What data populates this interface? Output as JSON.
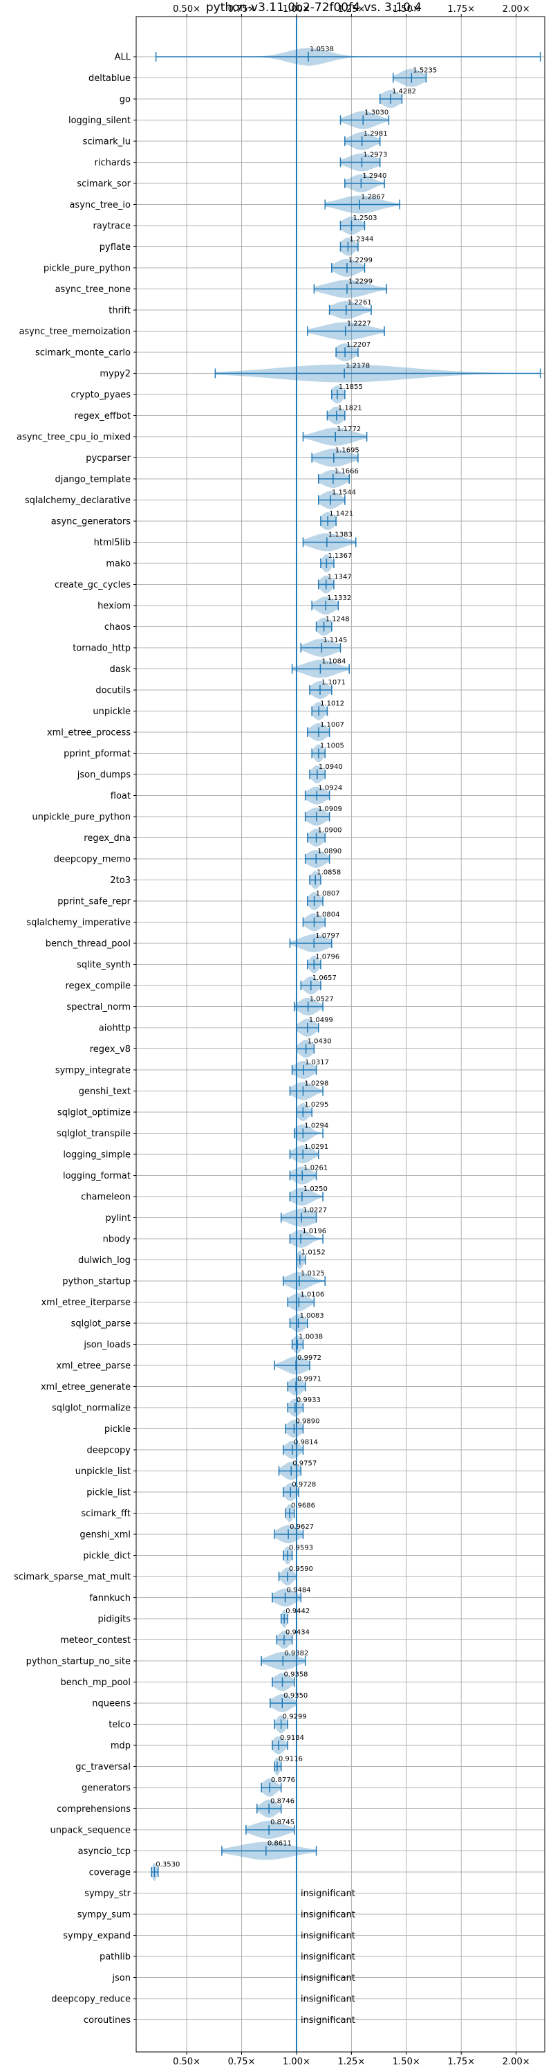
{
  "chart_data": {
    "type": "violin",
    "title": "python-v3.11.0b2-72f00f4 vs. 3.10.4",
    "xlim": [
      0.27,
      2.13
    ],
    "xticks": [
      0.5,
      0.75,
      1.0,
      1.25,
      1.5,
      1.75,
      2.0
    ],
    "xtick_labels": [
      "0.50×",
      "0.75×",
      "1.00×",
      "1.25×",
      "1.50×",
      "1.75×",
      "2.00×"
    ],
    "reference_value": 1.0,
    "grid": true,
    "insignificant_label": "insignificant",
    "benchmarks": [
      {
        "name": "ALL",
        "value": 1.0538,
        "min": 0.36,
        "max": 2.11,
        "spread": 0.09
      },
      {
        "name": "deltablue",
        "value": 1.5235,
        "min": 1.44,
        "max": 1.59,
        "spread": 0.05
      },
      {
        "name": "go",
        "value": 1.4282,
        "min": 1.38,
        "max": 1.48,
        "spread": 0.04
      },
      {
        "name": "logging_silent",
        "value": 1.303,
        "min": 1.2,
        "max": 1.42,
        "spread": 0.06
      },
      {
        "name": "scimark_lu",
        "value": 1.2981,
        "min": 1.22,
        "max": 1.38,
        "spread": 0.05
      },
      {
        "name": "richards",
        "value": 1.2973,
        "min": 1.2,
        "max": 1.38,
        "spread": 0.06
      },
      {
        "name": "scimark_sor",
        "value": 1.294,
        "min": 1.22,
        "max": 1.4,
        "spread": 0.05
      },
      {
        "name": "async_tree_io",
        "value": 1.2867,
        "min": 1.13,
        "max": 1.47,
        "spread": 0.09
      },
      {
        "name": "raytrace",
        "value": 1.2503,
        "min": 1.2,
        "max": 1.31,
        "spread": 0.04
      },
      {
        "name": "pyflate",
        "value": 1.2344,
        "min": 1.2,
        "max": 1.28,
        "spread": 0.03
      },
      {
        "name": "pickle_pure_python",
        "value": 1.2299,
        "min": 1.16,
        "max": 1.31,
        "spread": 0.05
      },
      {
        "name": "async_tree_none",
        "value": 1.2299,
        "min": 1.08,
        "max": 1.41,
        "spread": 0.09
      },
      {
        "name": "thrift",
        "value": 1.2261,
        "min": 1.15,
        "max": 1.34,
        "spread": 0.06
      },
      {
        "name": "async_tree_memoization",
        "value": 1.2227,
        "min": 1.05,
        "max": 1.4,
        "spread": 0.1
      },
      {
        "name": "scimark_monte_carlo",
        "value": 1.2207,
        "min": 1.18,
        "max": 1.28,
        "spread": 0.04
      },
      {
        "name": "mypy2",
        "value": 1.2178,
        "min": 0.63,
        "max": 2.11,
        "spread": 0.3
      },
      {
        "name": "crypto_pyaes",
        "value": 1.1855,
        "min": 1.16,
        "max": 1.22,
        "spread": 0.025
      },
      {
        "name": "regex_effbot",
        "value": 1.1821,
        "min": 1.14,
        "max": 1.22,
        "spread": 0.03
      },
      {
        "name": "async_tree_cpu_io_mixed",
        "value": 1.1772,
        "min": 1.03,
        "max": 1.32,
        "spread": 0.08
      },
      {
        "name": "pycparser",
        "value": 1.1695,
        "min": 1.07,
        "max": 1.28,
        "spread": 0.07
      },
      {
        "name": "django_template",
        "value": 1.1666,
        "min": 1.1,
        "max": 1.24,
        "spread": 0.05
      },
      {
        "name": "sqlalchemy_declarative",
        "value": 1.1544,
        "min": 1.1,
        "max": 1.22,
        "spread": 0.04
      },
      {
        "name": "async_generators",
        "value": 1.1421,
        "min": 1.11,
        "max": 1.18,
        "spread": 0.03
      },
      {
        "name": "html5lib",
        "value": 1.1383,
        "min": 1.03,
        "max": 1.27,
        "spread": 0.07
      },
      {
        "name": "mako",
        "value": 1.1367,
        "min": 1.11,
        "max": 1.17,
        "spread": 0.02
      },
      {
        "name": "create_gc_cycles",
        "value": 1.1347,
        "min": 1.1,
        "max": 1.17,
        "spread": 0.025
      },
      {
        "name": "hexiom",
        "value": 1.1332,
        "min": 1.07,
        "max": 1.19,
        "spread": 0.04
      },
      {
        "name": "chaos",
        "value": 1.1248,
        "min": 1.09,
        "max": 1.16,
        "spread": 0.03
      },
      {
        "name": "tornado_http",
        "value": 1.1145,
        "min": 1.02,
        "max": 1.2,
        "spread": 0.06
      },
      {
        "name": "dask",
        "value": 1.1084,
        "min": 0.98,
        "max": 1.24,
        "spread": 0.07
      },
      {
        "name": "docutils",
        "value": 1.1071,
        "min": 1.06,
        "max": 1.16,
        "spread": 0.035
      },
      {
        "name": "unpickle",
        "value": 1.1012,
        "min": 1.07,
        "max": 1.14,
        "spread": 0.025
      },
      {
        "name": "xml_etree_process",
        "value": 1.1007,
        "min": 1.05,
        "max": 1.15,
        "spread": 0.035
      },
      {
        "name": "pprint_pformat",
        "value": 1.1005,
        "min": 1.07,
        "max": 1.13,
        "spread": 0.02
      },
      {
        "name": "json_dumps",
        "value": 1.094,
        "min": 1.06,
        "max": 1.13,
        "spread": 0.025
      },
      {
        "name": "float",
        "value": 1.0924,
        "min": 1.04,
        "max": 1.15,
        "spread": 0.04
      },
      {
        "name": "unpickle_pure_python",
        "value": 1.0909,
        "min": 1.04,
        "max": 1.15,
        "spread": 0.04
      },
      {
        "name": "regex_dna",
        "value": 1.09,
        "min": 1.05,
        "max": 1.13,
        "spread": 0.03
      },
      {
        "name": "deepcopy_memo",
        "value": 1.089,
        "min": 1.04,
        "max": 1.15,
        "spread": 0.04
      },
      {
        "name": "2to3",
        "value": 1.0858,
        "min": 1.06,
        "max": 1.11,
        "spread": 0.02
      },
      {
        "name": "pprint_safe_repr",
        "value": 1.0807,
        "min": 1.05,
        "max": 1.12,
        "spread": 0.025
      },
      {
        "name": "sqlalchemy_imperative",
        "value": 1.0804,
        "min": 1.03,
        "max": 1.13,
        "spread": 0.035
      },
      {
        "name": "bench_thread_pool",
        "value": 1.0797,
        "min": 0.97,
        "max": 1.16,
        "spread": 0.06
      },
      {
        "name": "sqlite_synth",
        "value": 1.0796,
        "min": 1.05,
        "max": 1.11,
        "spread": 0.02
      },
      {
        "name": "regex_compile",
        "value": 1.0657,
        "min": 1.02,
        "max": 1.11,
        "spread": 0.03
      },
      {
        "name": "spectral_norm",
        "value": 1.0527,
        "min": 0.99,
        "max": 1.12,
        "spread": 0.04
      },
      {
        "name": "aiohttp",
        "value": 1.0499,
        "min": 1.0,
        "max": 1.1,
        "spread": 0.035
      },
      {
        "name": "regex_v8",
        "value": 1.043,
        "min": 1.0,
        "max": 1.08,
        "spread": 0.03
      },
      {
        "name": "sympy_integrate",
        "value": 1.0317,
        "min": 0.98,
        "max": 1.09,
        "spread": 0.04
      },
      {
        "name": "genshi_text",
        "value": 1.0298,
        "min": 0.97,
        "max": 1.12,
        "spread": 0.045
      },
      {
        "name": "sqlglot_optimize",
        "value": 1.0295,
        "min": 1.0,
        "max": 1.07,
        "spread": 0.025
      },
      {
        "name": "sqlglot_transpile",
        "value": 1.0294,
        "min": 0.99,
        "max": 1.12,
        "spread": 0.035
      },
      {
        "name": "logging_simple",
        "value": 1.0291,
        "min": 0.97,
        "max": 1.1,
        "spread": 0.04
      },
      {
        "name": "logging_format",
        "value": 1.0261,
        "min": 0.97,
        "max": 1.09,
        "spread": 0.04
      },
      {
        "name": "chameleon",
        "value": 1.025,
        "min": 0.97,
        "max": 1.12,
        "spread": 0.045
      },
      {
        "name": "pylint",
        "value": 1.0227,
        "min": 0.93,
        "max": 1.09,
        "spread": 0.06
      },
      {
        "name": "nbody",
        "value": 1.0196,
        "min": 0.97,
        "max": 1.12,
        "spread": 0.04
      },
      {
        "name": "dulwich_log",
        "value": 1.0152,
        "min": 1.0,
        "max": 1.04,
        "spread": 0.015
      },
      {
        "name": "python_startup",
        "value": 1.0125,
        "min": 0.94,
        "max": 1.13,
        "spread": 0.05
      },
      {
        "name": "xml_etree_iterparse",
        "value": 1.0106,
        "min": 0.96,
        "max": 1.08,
        "spread": 0.04
      },
      {
        "name": "sqlglot_parse",
        "value": 1.0083,
        "min": 0.97,
        "max": 1.05,
        "spread": 0.03
      },
      {
        "name": "json_loads",
        "value": 1.0038,
        "min": 0.98,
        "max": 1.03,
        "spread": 0.02
      },
      {
        "name": "xml_etree_parse",
        "value": 0.9972,
        "min": 0.9,
        "max": 1.06,
        "spread": 0.05
      },
      {
        "name": "xml_etree_generate",
        "value": 0.9971,
        "min": 0.96,
        "max": 1.04,
        "spread": 0.03
      },
      {
        "name": "sqlglot_normalize",
        "value": 0.9933,
        "min": 0.96,
        "max": 1.03,
        "spread": 0.025
      },
      {
        "name": "pickle",
        "value": 0.989,
        "min": 0.95,
        "max": 1.03,
        "spread": 0.03
      },
      {
        "name": "deepcopy",
        "value": 0.9814,
        "min": 0.94,
        "max": 1.03,
        "spread": 0.03
      },
      {
        "name": "unpickle_list",
        "value": 0.9757,
        "min": 0.92,
        "max": 1.02,
        "spread": 0.035
      },
      {
        "name": "pickle_list",
        "value": 0.9728,
        "min": 0.94,
        "max": 1.01,
        "spread": 0.025
      },
      {
        "name": "scimark_fft",
        "value": 0.9686,
        "min": 0.95,
        "max": 0.99,
        "spread": 0.015
      },
      {
        "name": "genshi_xml",
        "value": 0.9627,
        "min": 0.9,
        "max": 1.03,
        "spread": 0.045
      },
      {
        "name": "pickle_dict",
        "value": 0.9593,
        "min": 0.94,
        "max": 0.98,
        "spread": 0.015
      },
      {
        "name": "scimark_sparse_mat_mult",
        "value": 0.959,
        "min": 0.92,
        "max": 1.0,
        "spread": 0.025
      },
      {
        "name": "fannkuch",
        "value": 0.9484,
        "min": 0.89,
        "max": 1.02,
        "spread": 0.045
      },
      {
        "name": "pidigits",
        "value": 0.9442,
        "min": 0.93,
        "max": 0.96,
        "spread": 0.012
      },
      {
        "name": "meteor_contest",
        "value": 0.9434,
        "min": 0.91,
        "max": 0.98,
        "spread": 0.025
      },
      {
        "name": "python_startup_no_site",
        "value": 0.9382,
        "min": 0.84,
        "max": 1.04,
        "spread": 0.06
      },
      {
        "name": "bench_mp_pool",
        "value": 0.9358,
        "min": 0.89,
        "max": 0.99,
        "spread": 0.035
      },
      {
        "name": "nqueens",
        "value": 0.935,
        "min": 0.88,
        "max": 1.0,
        "spread": 0.04
      },
      {
        "name": "telco",
        "value": 0.9299,
        "min": 0.9,
        "max": 0.96,
        "spread": 0.02
      },
      {
        "name": "mdp",
        "value": 0.9184,
        "min": 0.89,
        "max": 0.96,
        "spread": 0.025
      },
      {
        "name": "gc_traversal",
        "value": 0.9116,
        "min": 0.9,
        "max": 0.93,
        "spread": 0.012
      },
      {
        "name": "generators",
        "value": 0.8776,
        "min": 0.84,
        "max": 0.93,
        "spread": 0.03
      },
      {
        "name": "comprehensions",
        "value": 0.8746,
        "min": 0.82,
        "max": 0.93,
        "spread": 0.035
      },
      {
        "name": "unpack_sequence",
        "value": 0.8745,
        "min": 0.77,
        "max": 0.99,
        "spread": 0.07
      },
      {
        "name": "asyncio_tcp",
        "value": 0.8611,
        "min": 0.66,
        "max": 1.09,
        "spread": 0.12
      },
      {
        "name": "coverage",
        "value": 0.353,
        "min": 0.34,
        "max": 0.37,
        "spread": 0.01
      },
      {
        "name": "sympy_str",
        "insignificant": true
      },
      {
        "name": "sympy_sum",
        "insignificant": true
      },
      {
        "name": "sympy_expand",
        "insignificant": true
      },
      {
        "name": "pathlib",
        "insignificant": true
      },
      {
        "name": "json",
        "insignificant": true
      },
      {
        "name": "deepcopy_reduce",
        "insignificant": true
      },
      {
        "name": "coroutines",
        "insignificant": true
      }
    ]
  }
}
